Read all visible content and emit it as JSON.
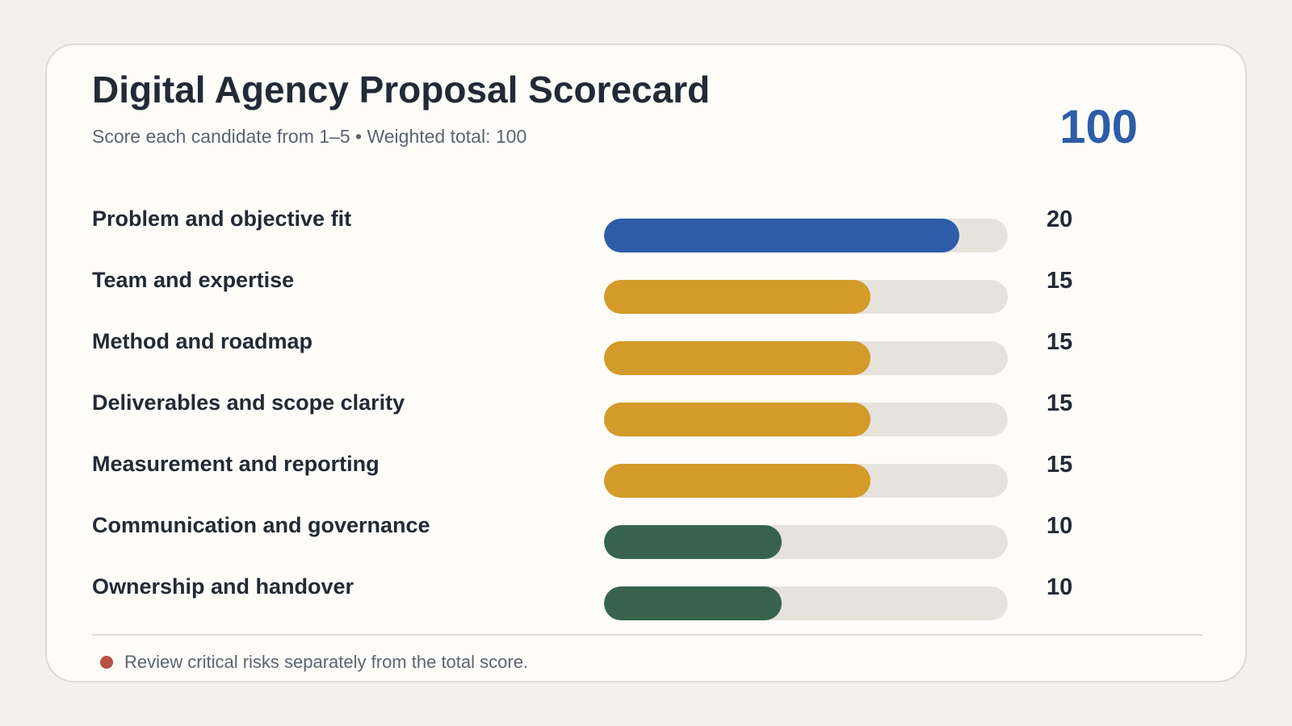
{
  "header": {
    "title": "Digital Agency Proposal Scorecard",
    "subtitle": "Score each candidate from 1–5 • Weighted total: 100",
    "total": "100"
  },
  "chart_data": {
    "type": "bar",
    "orientation": "horizontal",
    "categories": [
      "Problem and objective fit",
      "Team and expertise",
      "Method and roadmap",
      "Deliverables and scope clarity",
      "Measurement and reporting",
      "Communication and governance",
      "Ownership and handover"
    ],
    "values": [
      20,
      15,
      15,
      15,
      15,
      10,
      10
    ],
    "value_labels": [
      "20",
      "15",
      "15",
      "15",
      "15",
      "10",
      "10"
    ],
    "bar_fill_fractions": [
      0.88,
      0.66,
      0.66,
      0.66,
      0.66,
      0.44,
      0.44
    ],
    "bar_colors": [
      "#2d5ca8",
      "#d49a2a",
      "#d49a2a",
      "#d49a2a",
      "#d49a2a",
      "#37634c",
      "#37634c"
    ],
    "track_color": "#e5e3dc",
    "title": "Digital Agency Proposal Scorecard",
    "xlabel": "",
    "ylabel": "",
    "grid": false
  },
  "footer": {
    "note": "Review critical risks separately from the total score.",
    "note_color": "#b65245"
  }
}
